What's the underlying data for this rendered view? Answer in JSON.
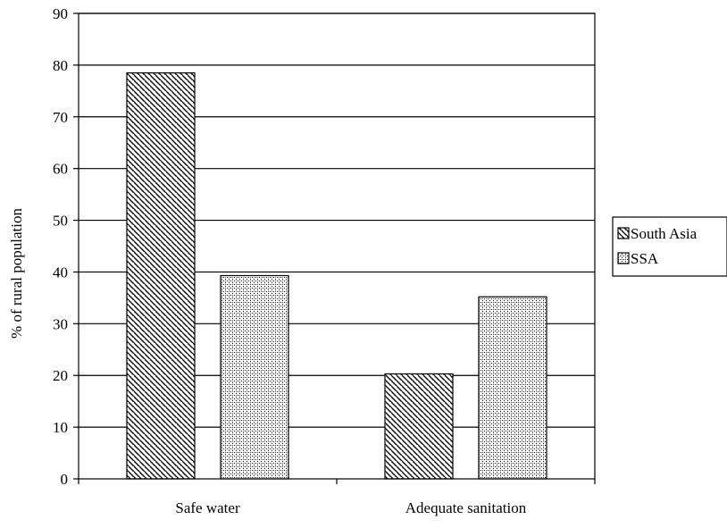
{
  "chart_data": {
    "type": "bar",
    "categories": [
      "Safe water",
      "Adequate sanitation"
    ],
    "series": [
      {
        "name": "South Asia",
        "values": [
          78.5,
          20.3
        ],
        "pattern": "diagonal-hatch"
      },
      {
        "name": "SSA",
        "values": [
          39.3,
          35.2
        ],
        "pattern": "dotted"
      }
    ],
    "title": "",
    "xlabel": "",
    "ylabel": "% of rural population",
    "ylim": [
      0,
      90
    ],
    "yticks": [
      0,
      10,
      20,
      30,
      40,
      50,
      60,
      70,
      80,
      90
    ],
    "grid": true,
    "legend_position": "right"
  }
}
